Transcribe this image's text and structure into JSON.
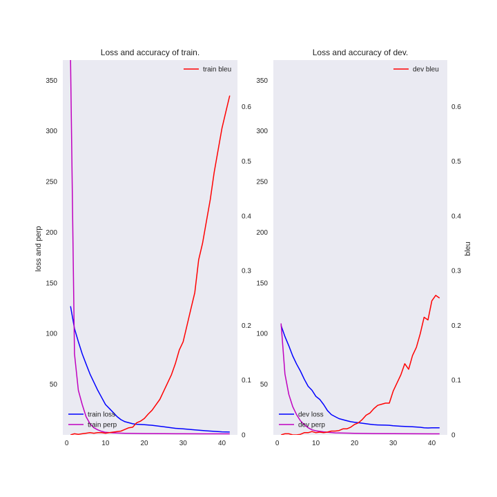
{
  "colors": {
    "plot_bg": "#eaeaf2",
    "loss": "#0000ff",
    "perp": "#bf00bf",
    "bleu": "#ff0000"
  },
  "chart_data": [
    {
      "type": "line",
      "title": "Loss and accuracy of train.",
      "ylabel_left": "loss and perp",
      "ylabel_right": "",
      "xlim": [
        -1,
        44
      ],
      "ylim_left": [
        0,
        370
      ],
      "ylim_right": [
        0,
        0.685
      ],
      "xticks": [
        0,
        10,
        20,
        30,
        40
      ],
      "yticks_left": [
        50,
        100,
        150,
        200,
        250,
        300,
        350
      ],
      "yticks_right": [
        0.0,
        0.1,
        0.2,
        0.3,
        0.4,
        0.5,
        0.6
      ],
      "legend_left": {
        "placement": "lower-left",
        "entries": [
          "train loss",
          "train perp"
        ]
      },
      "legend_right": {
        "placement": "upper-right",
        "entries": [
          "train bleu"
        ]
      },
      "series": [
        {
          "name": "train loss",
          "axis": "left",
          "color_key": "loss",
          "x": [
            1,
            2,
            3,
            4,
            5,
            6,
            7,
            8,
            9,
            10,
            11,
            12,
            13,
            14,
            15,
            16,
            17,
            18,
            20,
            22,
            25,
            28,
            30,
            33,
            36,
            40,
            42
          ],
          "y": [
            127,
            105,
            92,
            80,
            70,
            60,
            52,
            44,
            37,
            30,
            26,
            22,
            18,
            15,
            13,
            12,
            11,
            10.5,
            10,
            9.5,
            8,
            6.5,
            6,
            5,
            4,
            3,
            2.8
          ]
        },
        {
          "name": "train perp",
          "axis": "left",
          "color_key": "perp",
          "x": [
            1,
            2,
            3,
            4,
            5,
            6,
            7,
            8,
            9,
            10,
            12,
            15,
            20,
            25,
            30,
            35,
            40,
            42
          ],
          "y": [
            370,
            80,
            44,
            30,
            18,
            11,
            7,
            5,
            3.5,
            2.5,
            2,
            1.6,
            1.3,
            1.2,
            1.1,
            1.05,
            1.02,
            1.01
          ]
        },
        {
          "name": "train bleu",
          "axis": "right",
          "color_key": "bleu",
          "x": [
            1,
            2,
            3,
            4,
            5,
            6,
            7,
            8,
            9,
            10,
            11,
            12,
            13,
            14,
            15,
            16,
            17,
            18,
            19,
            20,
            21,
            22,
            23,
            24,
            25,
            26,
            27,
            28,
            29,
            30,
            31,
            32,
            33,
            34,
            35,
            36,
            37,
            38,
            39,
            40,
            41,
            42
          ],
          "y": [
            0.0,
            0.002,
            0.001,
            0.002,
            0.003,
            0.004,
            0.003,
            0.004,
            0.004,
            0.003,
            0.004,
            0.005,
            0.006,
            0.007,
            0.01,
            0.013,
            0.014,
            0.022,
            0.025,
            0.03,
            0.038,
            0.045,
            0.055,
            0.065,
            0.08,
            0.095,
            0.11,
            0.13,
            0.155,
            0.17,
            0.2,
            0.23,
            0.26,
            0.32,
            0.35,
            0.39,
            0.43,
            0.48,
            0.52,
            0.56,
            0.59,
            0.62
          ]
        }
      ]
    },
    {
      "type": "line",
      "title": "Loss and accuracy of dev.",
      "ylabel_left": "",
      "ylabel_right": "bleu",
      "xlim": [
        -1,
        44
      ],
      "ylim_left": [
        0,
        370
      ],
      "ylim_right": [
        0,
        0.685
      ],
      "xticks": [
        0,
        10,
        20,
        30,
        40
      ],
      "yticks_left": [
        50,
        100,
        150,
        200,
        250,
        300,
        350
      ],
      "yticks_right": [
        0.0,
        0.1,
        0.2,
        0.3,
        0.4,
        0.5,
        0.6
      ],
      "legend_left": {
        "placement": "lower-left",
        "entries": [
          "dev loss",
          "dev perp"
        ]
      },
      "legend_right": {
        "placement": "upper-right",
        "entries": [
          "dev bleu"
        ]
      },
      "series": [
        {
          "name": "dev loss",
          "axis": "left",
          "color_key": "loss",
          "x": [
            1,
            2,
            3,
            4,
            5,
            6,
            7,
            8,
            9,
            10,
            11,
            12,
            13,
            14,
            15,
            16,
            17,
            18,
            19,
            20,
            21,
            22,
            23,
            24,
            25,
            26,
            27,
            28,
            29,
            30,
            31,
            32,
            33,
            34,
            35,
            36,
            37,
            38,
            39,
            40,
            41,
            42
          ],
          "y": [
            108,
            97,
            88,
            78,
            70,
            63,
            55,
            48,
            44,
            38,
            35,
            30,
            24,
            20,
            18,
            16,
            15,
            14,
            13,
            12.5,
            12,
            11.5,
            11,
            10.5,
            10,
            9.8,
            9.7,
            9.6,
            9.5,
            9,
            8.8,
            8.5,
            8.3,
            8.2,
            8,
            7.8,
            7.5,
            7,
            6.8,
            7,
            7,
            7
          ]
        },
        {
          "name": "dev perp",
          "axis": "left",
          "color_key": "perp",
          "x": [
            1,
            2,
            3,
            4,
            5,
            6,
            7,
            8,
            9,
            10,
            12,
            15,
            20,
            25,
            30,
            35,
            40,
            42
          ],
          "y": [
            110,
            60,
            40,
            28,
            20,
            14,
            10,
            7,
            5,
            4,
            3,
            2,
            1.5,
            1.3,
            1.2,
            1.1,
            1.05,
            1.05
          ]
        },
        {
          "name": "dev bleu",
          "axis": "right",
          "color_key": "bleu",
          "x": [
            1,
            2,
            3,
            4,
            5,
            6,
            7,
            8,
            9,
            10,
            11,
            12,
            13,
            14,
            15,
            16,
            17,
            18,
            19,
            20,
            21,
            22,
            23,
            24,
            25,
            26,
            27,
            28,
            29,
            30,
            31,
            32,
            33,
            34,
            35,
            36,
            37,
            38,
            39,
            40,
            41,
            42
          ],
          "y": [
            0.0,
            0.002,
            0.002,
            0.0,
            0.0,
            0.001,
            0.004,
            0.004,
            0.006,
            0.004,
            0.005,
            0.004,
            0.005,
            0.007,
            0.007,
            0.008,
            0.011,
            0.011,
            0.014,
            0.019,
            0.022,
            0.028,
            0.036,
            0.04,
            0.048,
            0.054,
            0.056,
            0.058,
            0.058,
            0.08,
            0.095,
            0.11,
            0.13,
            0.12,
            0.145,
            0.16,
            0.185,
            0.215,
            0.21,
            0.245,
            0.255,
            0.25
          ]
        }
      ]
    }
  ]
}
